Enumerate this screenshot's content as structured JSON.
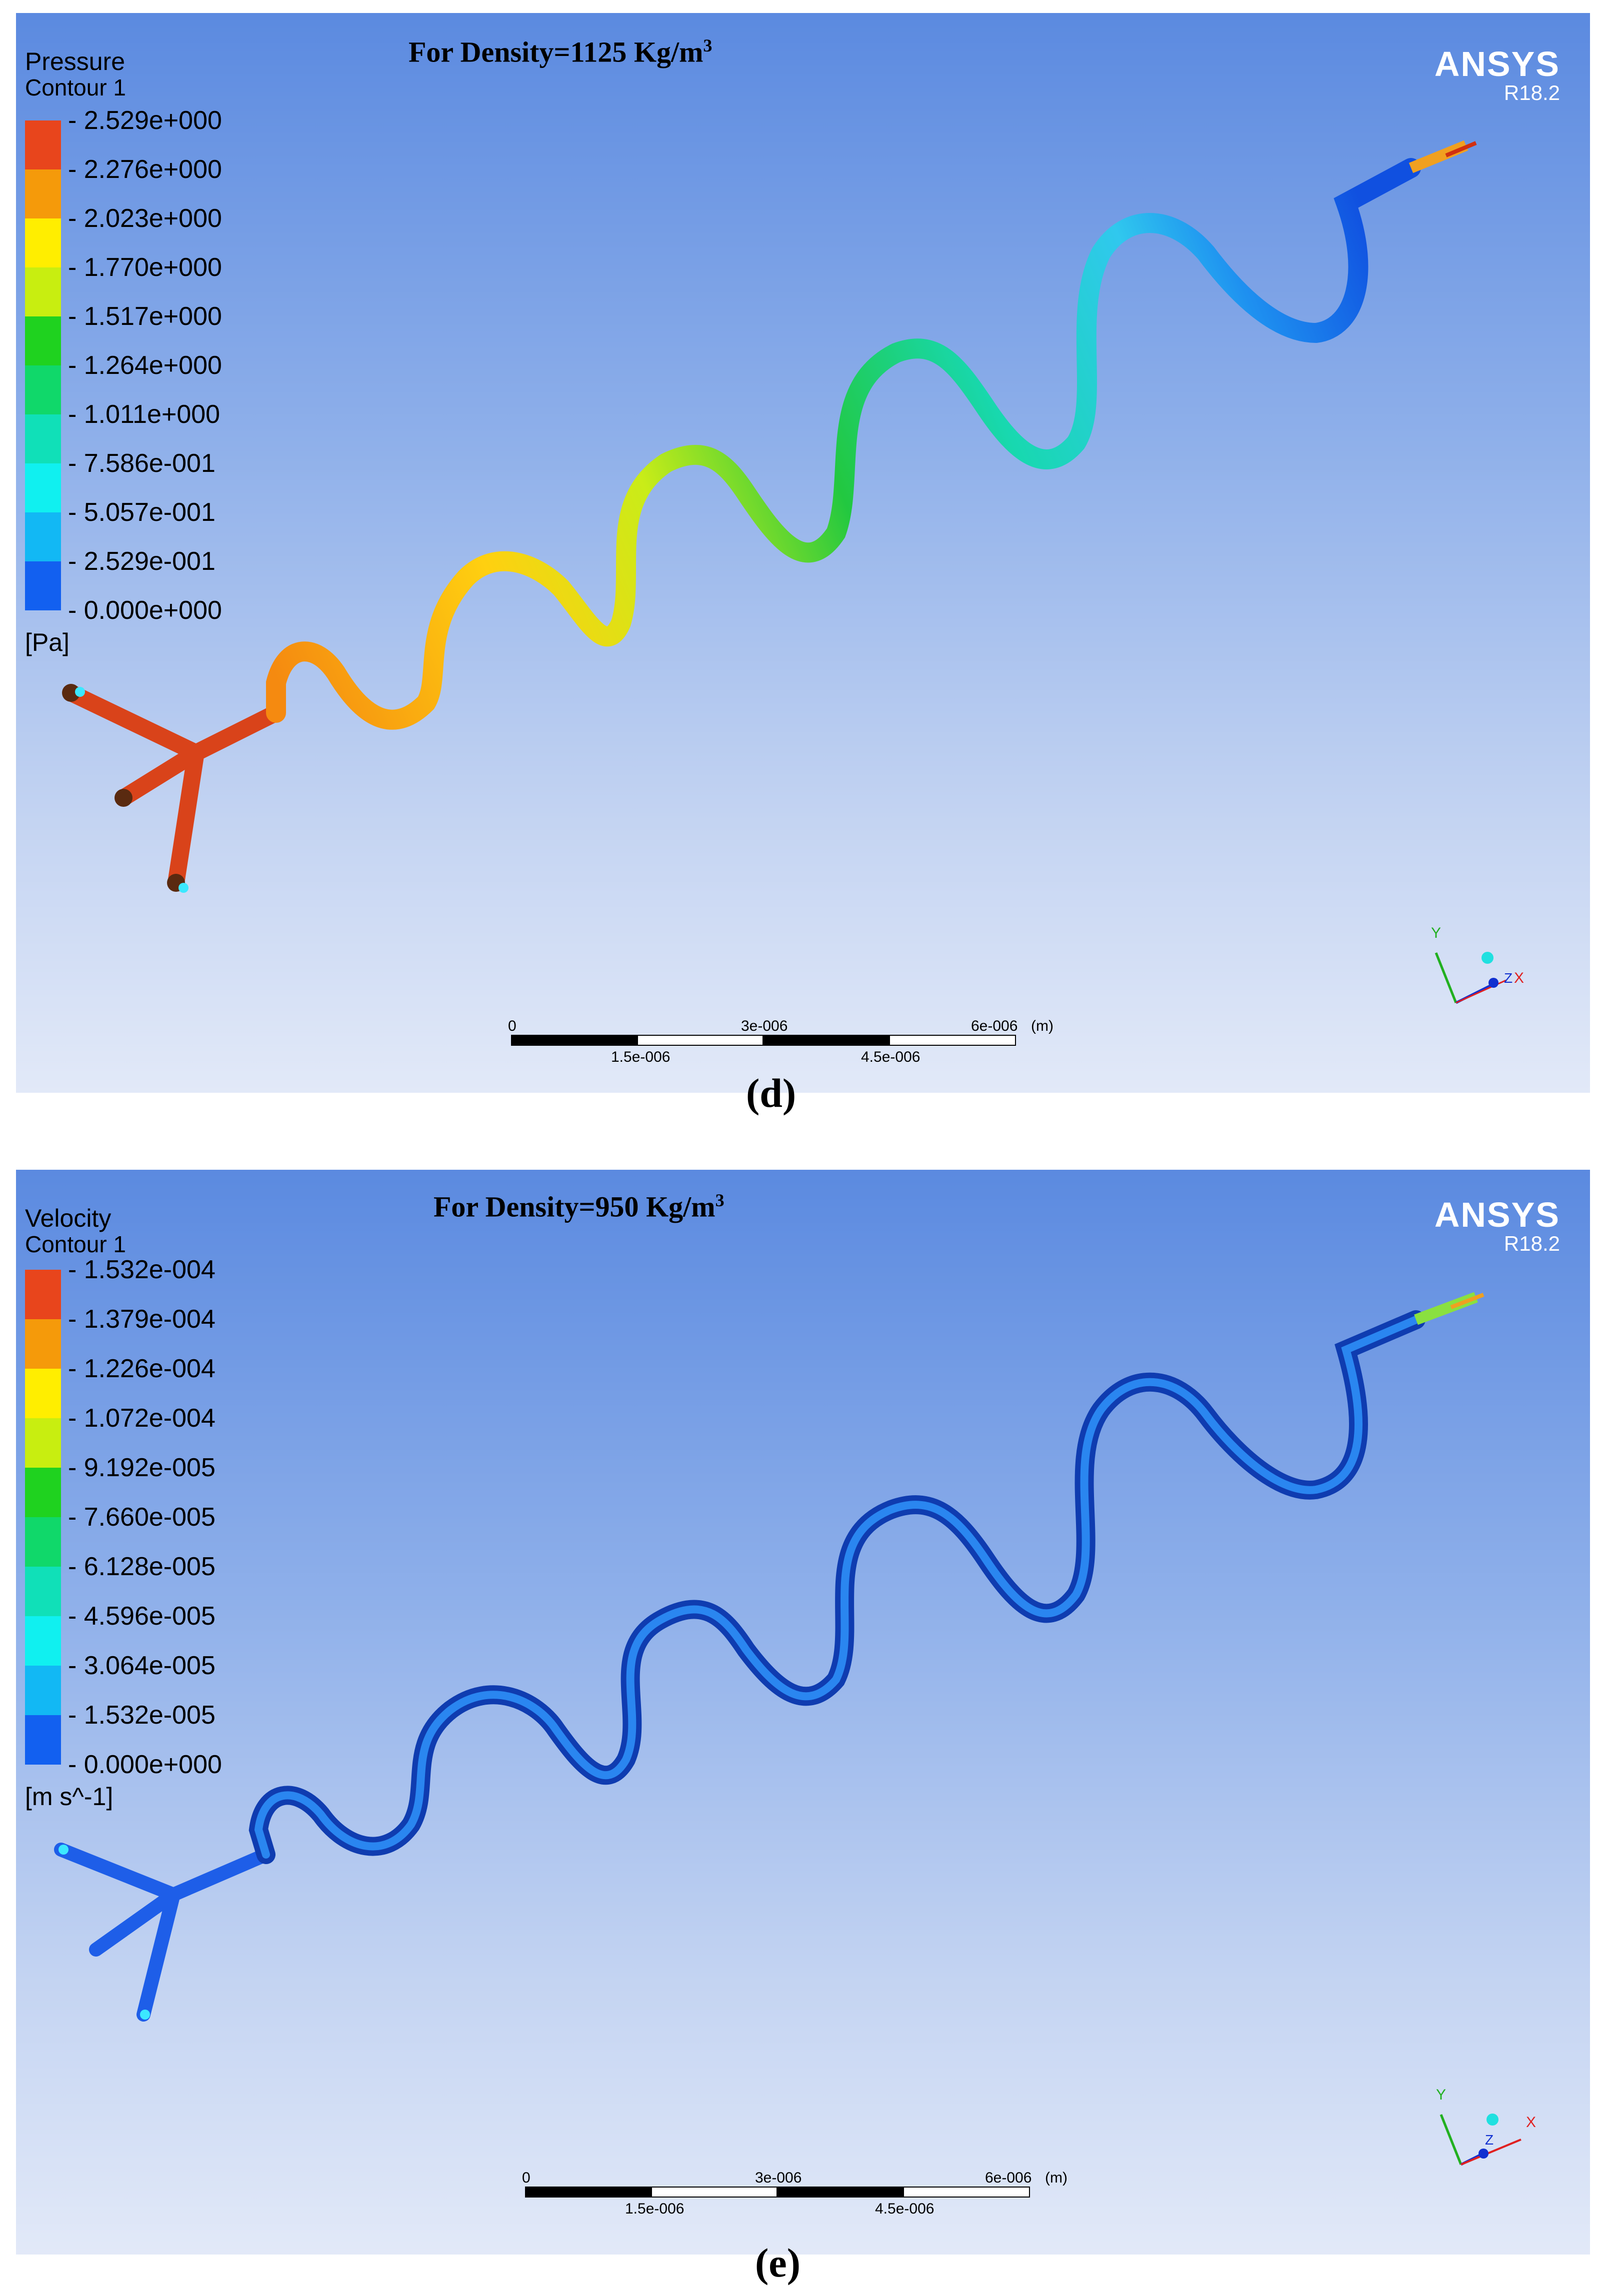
{
  "panels": {
    "d": {
      "legend_title_1": "Pressure",
      "legend_title_2": "Contour 1",
      "legend_values": [
        "2.529e+000",
        "2.276e+000",
        "2.023e+000",
        "1.770e+000",
        "1.517e+000",
        "1.264e+000",
        "1.011e+000",
        "7.586e-001",
        "5.057e-001",
        "2.529e-001",
        "0.000e+000"
      ],
      "unit": "[Pa]",
      "density_text": "For Density=1125 Kg/m",
      "density_sup": "3",
      "logo": "ANSYS",
      "version": "R18.2",
      "scale": {
        "t0": "0",
        "t1": "1.5e-006",
        "t2": "3e-006",
        "t3": "4.5e-006",
        "t4": "6e-006",
        "unit": "(m)"
      },
      "axis_y": "Y",
      "axis_z": "Z",
      "axis_x": "X",
      "letter": "(d)"
    },
    "e": {
      "legend_title_1": "Velocity",
      "legend_title_2": "Contour 1",
      "legend_values": [
        "1.532e-004",
        "1.379e-004",
        "1.226e-004",
        "1.072e-004",
        "9.192e-005",
        "7.660e-005",
        "6.128e-005",
        "4.596e-005",
        "3.064e-005",
        "1.532e-005",
        "0.000e+000"
      ],
      "unit": "[m s^-1]",
      "density_text": "For Density=950 Kg/m",
      "density_sup": "3",
      "logo": "ANSYS",
      "version": "R18.2",
      "scale": {
        "t0": "0",
        "t1": "1.5e-006",
        "t2": "3e-006",
        "t3": "4.5e-006",
        "t4": "6e-006",
        "unit": "(m)"
      },
      "axis_y": "Y",
      "axis_z": "Z",
      "axis_x": "X",
      "letter": "(e)"
    }
  },
  "colormap": [
    "#e8451c",
    "#f59a0a",
    "#ffee00",
    "#c8ee10",
    "#1fd21f",
    "#10d86a",
    "#10e0b8",
    "#10f0f0",
    "#12b8f4",
    "#1260f0"
  ]
}
